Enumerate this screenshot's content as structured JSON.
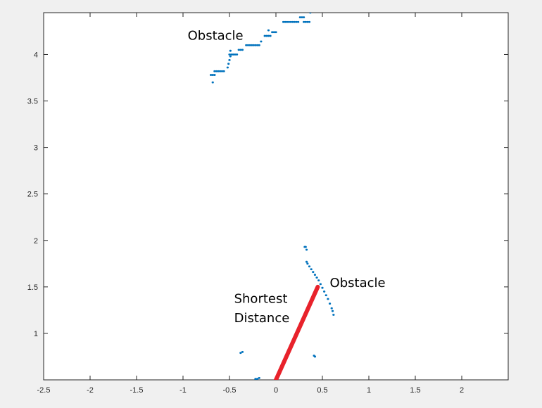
{
  "chart_data": {
    "type": "scatter",
    "title": "",
    "xlabel": "",
    "ylabel": "",
    "xlim": [
      -2.5,
      2.5
    ],
    "ylim": [
      0.5,
      4.45
    ],
    "xticks": [
      -2.5,
      -2,
      -1.5,
      -1,
      -0.5,
      0,
      0.5,
      1,
      1.5,
      2
    ],
    "xtick_labels": [
      "-2.5",
      "-2",
      "-1.5",
      "-1",
      "-0.5",
      "0",
      "0.5",
      "1",
      "1.5",
      "2"
    ],
    "yticks": [
      1,
      1.5,
      2,
      2.5,
      3,
      3.5,
      4
    ],
    "ytick_labels": [
      "1",
      "1.5",
      "2",
      "2.5",
      "3",
      "3.5",
      "4"
    ],
    "grid": false,
    "legend": "none",
    "colors": {
      "points": "#0072BD",
      "shortest_line": "#E8222B",
      "axes": "#262626",
      "plot_bg": "#ffffff",
      "figure_bg": "#f0f0f0"
    },
    "series": [
      {
        "points": [
          [
            -0.7,
            3.78
          ],
          [
            -0.68,
            3.78
          ],
          [
            -0.66,
            3.78
          ],
          [
            -0.68,
            3.7
          ],
          [
            -0.66,
            3.82
          ],
          [
            -0.64,
            3.82
          ],
          [
            -0.62,
            3.82
          ],
          [
            -0.6,
            3.82
          ],
          [
            -0.58,
            3.82
          ],
          [
            -0.56,
            3.82
          ],
          [
            -0.52,
            3.86
          ],
          [
            -0.51,
            3.9
          ],
          [
            -0.5,
            3.94
          ],
          [
            -0.49,
            3.98
          ],
          [
            -0.5,
            4.0
          ],
          [
            -0.48,
            4.0
          ],
          [
            -0.46,
            4.0
          ],
          [
            -0.44,
            4.0
          ],
          [
            -0.42,
            4.0
          ],
          [
            -0.49,
            4.04
          ],
          [
            -0.4,
            4.05
          ],
          [
            -0.38,
            4.05
          ],
          [
            -0.36,
            4.05
          ],
          [
            -0.32,
            4.1
          ],
          [
            -0.3,
            4.1
          ],
          [
            -0.28,
            4.1
          ],
          [
            -0.26,
            4.1
          ],
          [
            -0.24,
            4.1
          ],
          [
            -0.22,
            4.1
          ],
          [
            -0.2,
            4.1
          ],
          [
            -0.18,
            4.1
          ],
          [
            -0.16,
            4.14
          ],
          [
            -0.12,
            4.2
          ],
          [
            -0.1,
            4.2
          ],
          [
            -0.08,
            4.2
          ],
          [
            -0.06,
            4.2
          ],
          [
            -0.04,
            4.24
          ],
          [
            -0.02,
            4.24
          ],
          [
            0.0,
            4.24
          ],
          [
            -0.08,
            4.26
          ],
          [
            0.08,
            4.35
          ],
          [
            0.1,
            4.35
          ],
          [
            0.12,
            4.35
          ],
          [
            0.14,
            4.35
          ],
          [
            0.16,
            4.35
          ],
          [
            0.18,
            4.35
          ],
          [
            0.2,
            4.35
          ],
          [
            0.22,
            4.35
          ],
          [
            0.24,
            4.35
          ],
          [
            0.3,
            4.35
          ],
          [
            0.32,
            4.35
          ],
          [
            0.34,
            4.35
          ],
          [
            0.36,
            4.35
          ],
          [
            0.26,
            4.4
          ],
          [
            0.28,
            4.4
          ],
          [
            0.3,
            4.4
          ],
          [
            0.37,
            4.45
          ]
        ]
      },
      {
        "points": [
          [
            0.31,
            1.93
          ],
          [
            0.32,
            1.93
          ],
          [
            0.33,
            1.9
          ],
          [
            0.33,
            1.77
          ],
          [
            0.34,
            1.75
          ],
          [
            0.36,
            1.72
          ],
          [
            0.38,
            1.69
          ],
          [
            0.4,
            1.66
          ],
          [
            0.42,
            1.63
          ],
          [
            0.44,
            1.6
          ],
          [
            0.46,
            1.57
          ],
          [
            0.48,
            1.53
          ],
          [
            0.5,
            1.49
          ],
          [
            0.52,
            1.45
          ],
          [
            0.54,
            1.41
          ],
          [
            0.56,
            1.37
          ],
          [
            0.58,
            1.32
          ],
          [
            0.6,
            1.27
          ],
          [
            0.61,
            1.24
          ],
          [
            0.62,
            1.2
          ],
          [
            -0.38,
            0.79
          ],
          [
            -0.36,
            0.8
          ],
          [
            0.41,
            0.76
          ],
          [
            0.42,
            0.75
          ],
          [
            -0.22,
            0.51
          ],
          [
            -0.2,
            0.51
          ],
          [
            -0.18,
            0.52
          ]
        ]
      }
    ],
    "segments": [
      {
        "x": [
          0.0,
          0.45
        ],
        "y": [
          0.5,
          1.5
        ]
      }
    ],
    "annotations": [
      {
        "text": "Obstacle",
        "x": -0.95,
        "y": 4.16
      },
      {
        "text": "Obstacle",
        "x": 0.58,
        "y": 1.5
      },
      {
        "text": "Shortest",
        "x": -0.45,
        "y": 1.33
      },
      {
        "text": "Distance",
        "x": -0.45,
        "y": 1.12
      }
    ]
  }
}
